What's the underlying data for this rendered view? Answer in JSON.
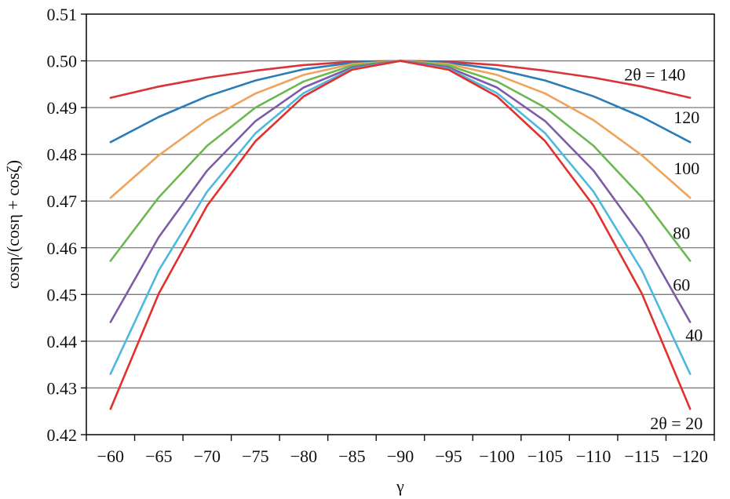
{
  "chart_data": {
    "type": "line",
    "title": "",
    "xlabel": "γ",
    "ylabel": "cosη/(cosη + cosζ)",
    "x": [
      -60,
      -65,
      -70,
      -75,
      -80,
      -85,
      -90,
      -95,
      -100,
      -105,
      -110,
      -115,
      -120
    ],
    "x_tick_labels": [
      "−60",
      "−65",
      "−70",
      "−75",
      "−80",
      "−85",
      "−90",
      "−95",
      "−100",
      "−105",
      "−110",
      "−115",
      "−120"
    ],
    "xlim": [
      -60,
      -120
    ],
    "ylim": [
      0.42,
      0.51
    ],
    "y_ticks": [
      0.42,
      0.43,
      0.44,
      0.45,
      0.46,
      0.47,
      0.48,
      0.49,
      0.5,
      0.51
    ],
    "y_tick_labels": [
      "0.42",
      "0.43",
      "0.44",
      "0.45",
      "0.46",
      "0.47",
      "0.48",
      "0.49",
      "0.50",
      "0.51"
    ],
    "grid": "horizontal",
    "legend": "none",
    "series": [
      {
        "label": "2θ = 140",
        "color": "#d9343a",
        "values": [
          0.4921,
          0.4945,
          0.4964,
          0.4979,
          0.4991,
          0.4998,
          0.5,
          0.4998,
          0.4991,
          0.4979,
          0.4964,
          0.4945,
          0.4921
        ]
      },
      {
        "label": "120",
        "color": "#2a7db8",
        "values": [
          0.4826,
          0.488,
          0.4924,
          0.4958,
          0.4982,
          0.4996,
          0.5,
          0.4996,
          0.4982,
          0.4958,
          0.4924,
          0.488,
          0.4826
        ]
      },
      {
        "label": "100",
        "color": "#f0a35a",
        "values": [
          0.4707,
          0.4798,
          0.4873,
          0.493,
          0.497,
          0.4993,
          0.5,
          0.4993,
          0.497,
          0.493,
          0.4873,
          0.4798,
          0.4707
        ]
      },
      {
        "label": "80",
        "color": "#6ab84f",
        "values": [
          0.4572,
          0.4708,
          0.4818,
          0.49,
          0.4956,
          0.499,
          0.5,
          0.499,
          0.4956,
          0.49,
          0.4818,
          0.4708,
          0.4572
        ]
      },
      {
        "label": "60",
        "color": "#7e5ba6",
        "values": [
          0.4441,
          0.4623,
          0.4765,
          0.4871,
          0.4943,
          0.4986,
          0.5,
          0.4986,
          0.4943,
          0.4871,
          0.4765,
          0.4623,
          0.4441
        ]
      },
      {
        "label": "40",
        "color": "#4cb9de",
        "values": [
          0.433,
          0.4552,
          0.472,
          0.4845,
          0.4931,
          0.4983,
          0.5,
          0.4983,
          0.4931,
          0.4845,
          0.472,
          0.4552,
          0.433
        ]
      },
      {
        "label": "2θ = 20",
        "color": "#e2312c",
        "values": [
          0.4255,
          0.4502,
          0.469,
          0.4828,
          0.4924,
          0.4981,
          0.5,
          0.4981,
          0.4924,
          0.4828,
          0.469,
          0.4502,
          0.4255
        ]
      }
    ]
  }
}
